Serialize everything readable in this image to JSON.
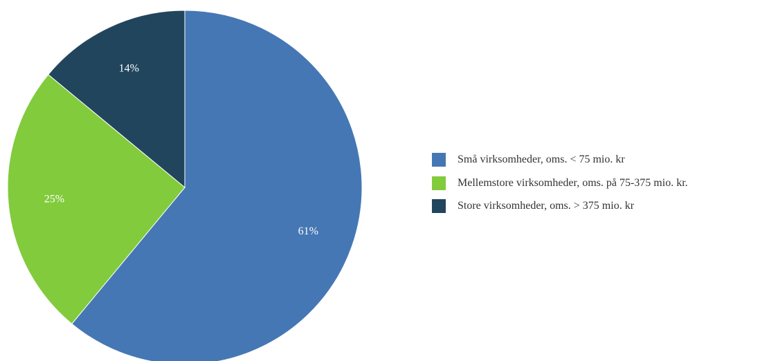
{
  "chart_data": {
    "type": "pie",
    "title": "",
    "legend_position": "right",
    "slices": [
      {
        "label": "Små virksomheder, oms. < 75 mio. kr",
        "value": 61,
        "value_label": "61%",
        "color": "#4577b4"
      },
      {
        "label": "Mellemstore virksomheder, oms. på 75-375 mio. kr.",
        "value": 25,
        "value_label": "25%",
        "color": "#82cb3c"
      },
      {
        "label": "Store virksomheder, oms. > 375 mio. kr",
        "value": 14,
        "value_label": "14%",
        "color": "#22455e"
      }
    ]
  }
}
